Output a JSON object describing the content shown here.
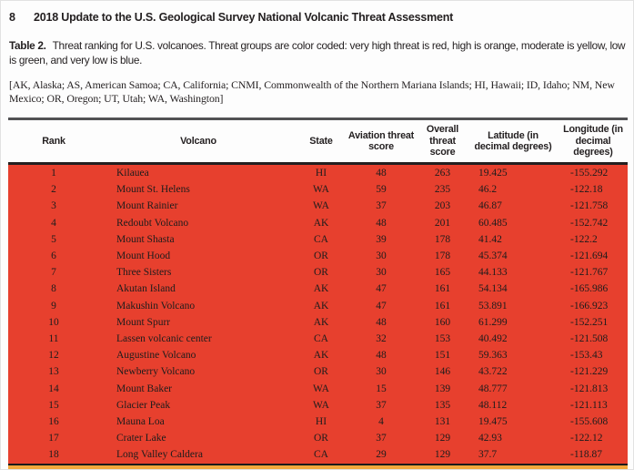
{
  "page": {
    "page_number": "8",
    "running_title": "2018 Update to the U.S. Geological Survey National Volcanic Threat Assessment"
  },
  "caption": {
    "label": "Table 2.",
    "text": "Threat ranking for U.S. volcanoes. Threat groups are color coded: very high threat is red, high is orange, moderate is yellow, low is green, and very low is blue."
  },
  "abbreviation_note": "[AK, Alaska; AS, American Samoa; CA, California; CNMI, Commonwealth of the Northern Mariana Islands; HI, Hawaii; ID, Idaho; NM, New Mexico; OR, Oregon; UT, Utah; WA, Washington]",
  "table": {
    "columns": [
      "Rank",
      "Volcano",
      "State",
      "Aviation threat score",
      "Overall threat score",
      "Latitude (in decimal degrees)",
      "Longitude (in decimal degrees)"
    ],
    "colors": {
      "very_high_threat_row": "#e7402e",
      "high_threat_row": "#f3a73b"
    },
    "rows": [
      {
        "rank": "1",
        "volcano": "Kilauea",
        "state": "HI",
        "aviation_threat_score": "48",
        "overall_threat_score": "263",
        "latitude": "19.425",
        "longitude": "-155.292"
      },
      {
        "rank": "2",
        "volcano": "Mount St. Helens",
        "state": "WA",
        "aviation_threat_score": "59",
        "overall_threat_score": "235",
        "latitude": "46.2",
        "longitude": "-122.18"
      },
      {
        "rank": "3",
        "volcano": "Mount Rainier",
        "state": "WA",
        "aviation_threat_score": "37",
        "overall_threat_score": "203",
        "latitude": "46.87",
        "longitude": "-121.758"
      },
      {
        "rank": "4",
        "volcano": "Redoubt Volcano",
        "state": "AK",
        "aviation_threat_score": "48",
        "overall_threat_score": "201",
        "latitude": "60.485",
        "longitude": "-152.742"
      },
      {
        "rank": "5",
        "volcano": "Mount Shasta",
        "state": "CA",
        "aviation_threat_score": "39",
        "overall_threat_score": "178",
        "latitude": "41.42",
        "longitude": "-122.2"
      },
      {
        "rank": "6",
        "volcano": "Mount Hood",
        "state": "OR",
        "aviation_threat_score": "30",
        "overall_threat_score": "178",
        "latitude": "45.374",
        "longitude": "-121.694"
      },
      {
        "rank": "7",
        "volcano": "Three Sisters",
        "state": "OR",
        "aviation_threat_score": "30",
        "overall_threat_score": "165",
        "latitude": "44.133",
        "longitude": "-121.767"
      },
      {
        "rank": "8",
        "volcano": "Akutan Island",
        "state": "AK",
        "aviation_threat_score": "47",
        "overall_threat_score": "161",
        "latitude": "54.134",
        "longitude": "-165.986"
      },
      {
        "rank": "9",
        "volcano": "Makushin Volcano",
        "state": "AK",
        "aviation_threat_score": "47",
        "overall_threat_score": "161",
        "latitude": "53.891",
        "longitude": "-166.923"
      },
      {
        "rank": "10",
        "volcano": "Mount Spurr",
        "state": "AK",
        "aviation_threat_score": "48",
        "overall_threat_score": "160",
        "latitude": "61.299",
        "longitude": "-152.251"
      },
      {
        "rank": "11",
        "volcano": "Lassen volcanic center",
        "state": "CA",
        "aviation_threat_score": "32",
        "overall_threat_score": "153",
        "latitude": "40.492",
        "longitude": "-121.508"
      },
      {
        "rank": "12",
        "volcano": "Augustine Volcano",
        "state": "AK",
        "aviation_threat_score": "48",
        "overall_threat_score": "151",
        "latitude": "59.363",
        "longitude": "-153.43"
      },
      {
        "rank": "13",
        "volcano": "Newberry Volcano",
        "state": "OR",
        "aviation_threat_score": "30",
        "overall_threat_score": "146",
        "latitude": "43.722",
        "longitude": "-121.229"
      },
      {
        "rank": "14",
        "volcano": "Mount Baker",
        "state": "WA",
        "aviation_threat_score": "15",
        "overall_threat_score": "139",
        "latitude": "48.777",
        "longitude": "-121.813"
      },
      {
        "rank": "15",
        "volcano": "Glacier Peak",
        "state": "WA",
        "aviation_threat_score": "37",
        "overall_threat_score": "135",
        "latitude": "48.112",
        "longitude": "-121.113"
      },
      {
        "rank": "16",
        "volcano": "Mauna Loa",
        "state": "HI",
        "aviation_threat_score": "4",
        "overall_threat_score": "131",
        "latitude": "19.475",
        "longitude": "-155.608"
      },
      {
        "rank": "17",
        "volcano": "Crater Lake",
        "state": "OR",
        "aviation_threat_score": "37",
        "overall_threat_score": "129",
        "latitude": "42.93",
        "longitude": "-122.12"
      },
      {
        "rank": "18",
        "volcano": "Long Valley Caldera",
        "state": "CA",
        "aviation_threat_score": "29",
        "overall_threat_score": "129",
        "latitude": "37.7",
        "longitude": "-118.87"
      }
    ]
  }
}
